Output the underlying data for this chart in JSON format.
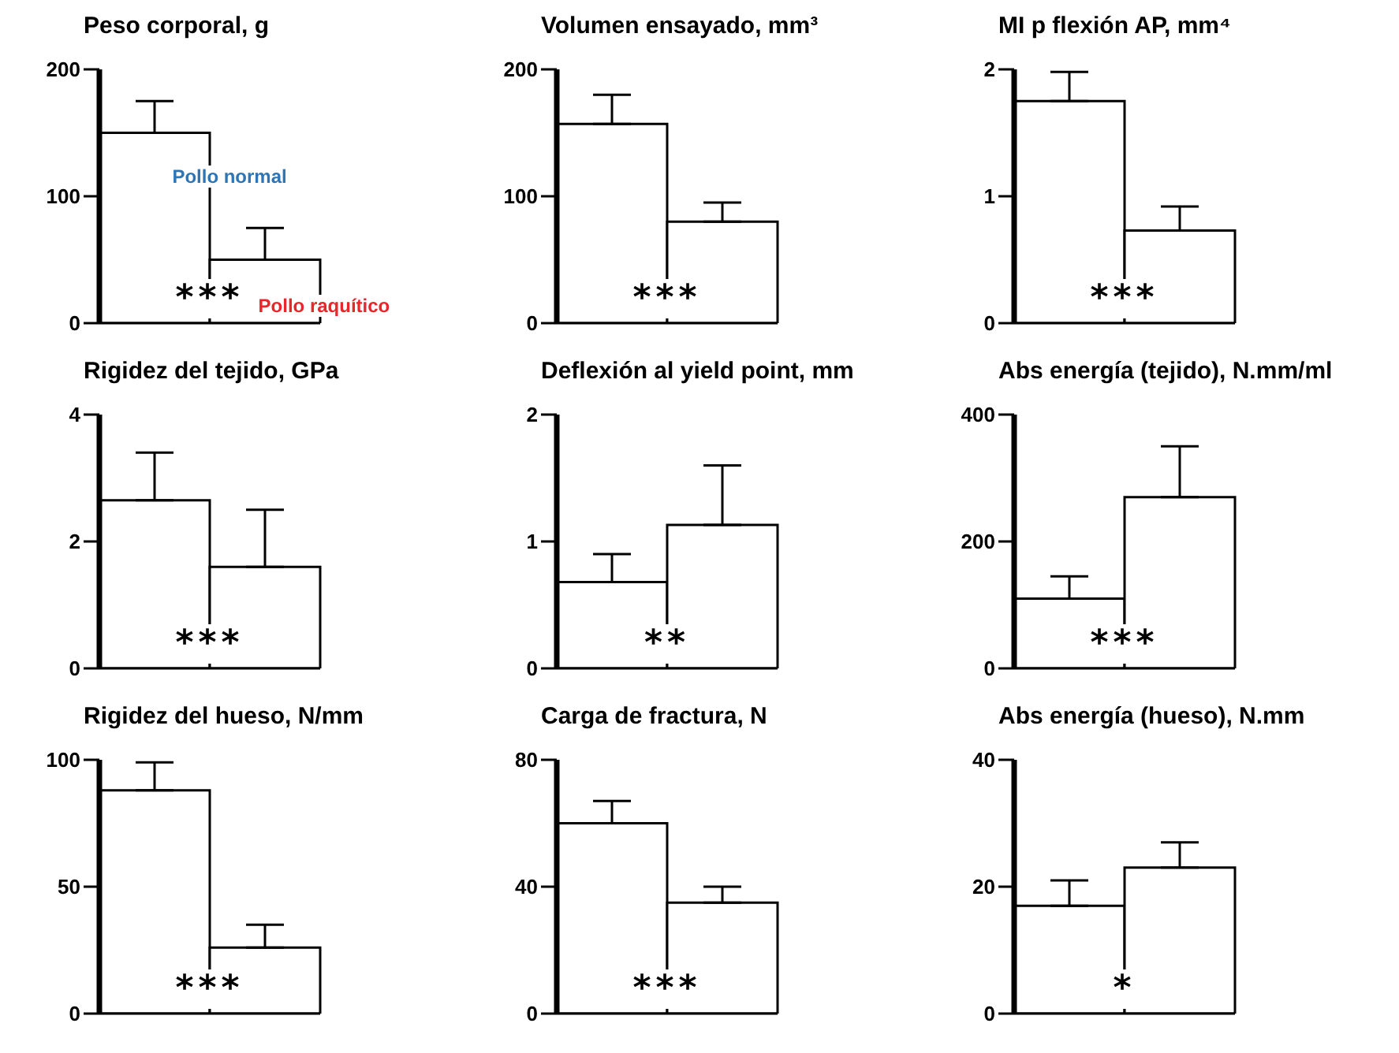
{
  "chart_data": [
    {
      "type": "bar",
      "title": "Peso corporal, g",
      "categories": [
        null,
        null
      ],
      "values": [
        150,
        50
      ],
      "errors": [
        [
          150,
          175
        ],
        [
          50,
          75
        ]
      ],
      "colors": [
        "#ffffff",
        "#ffffff"
      ],
      "ylim": [
        0,
        200
      ],
      "yticks": [
        0,
        100,
        200
      ],
      "tick_labels": "y",
      "annotations": [
        "***",
        "Pollo normal",
        "Pollo raquítico"
      ]
    },
    {
      "type": "bar",
      "title": "Volumen ensayado, mm³",
      "categories": [
        null,
        null
      ],
      "values": [
        157,
        80
      ],
      "errors": [
        [
          157,
          180
        ],
        [
          80,
          95
        ]
      ],
      "colors": [
        "#ffffff",
        "#ffffff"
      ],
      "ylim": [
        0,
        200
      ],
      "yticks": [
        0,
        100,
        200
      ],
      "tick_labels": "y",
      "annotations": [
        "***"
      ]
    },
    {
      "type": "bar",
      "title": "MI p flexión AP, mm⁴",
      "categories": [
        null,
        null
      ],
      "values": [
        1.75,
        0.73
      ],
      "errors": [
        [
          1.75,
          1.98
        ],
        [
          0.73,
          0.92
        ]
      ],
      "colors": [
        "#ffffff",
        "#ffffff"
      ],
      "ylim": [
        0,
        2
      ],
      "yticks": [
        0,
        1,
        2
      ],
      "tick_labels": "y",
      "annotations": [
        "***"
      ]
    },
    {
      "type": "bar",
      "title": "Rigidez del tejido, GPa",
      "categories": [
        null,
        null
      ],
      "values": [
        2.65,
        1.6
      ],
      "errors": [
        [
          2.65,
          3.4
        ],
        [
          1.6,
          2.5
        ]
      ],
      "colors": [
        "#ffffff",
        "#ffffff"
      ],
      "ylim": [
        0,
        4
      ],
      "yticks": [
        0,
        2,
        4
      ],
      "tick_labels": "y",
      "annotations": [
        "***"
      ]
    },
    {
      "type": "bar",
      "title": "Deflexión al yield point, mm",
      "categories": [
        null,
        null
      ],
      "values": [
        0.68,
        1.13
      ],
      "errors": [
        [
          0.68,
          0.9
        ],
        [
          1.13,
          1.6
        ]
      ],
      "colors": [
        "#ffffff",
        "#ffffff"
      ],
      "ylim": [
        0,
        2
      ],
      "yticks": [
        0,
        1,
        2
      ],
      "tick_labels": "y",
      "annotations": [
        "**"
      ]
    },
    {
      "type": "bar",
      "title": "Abs energía (tejido), N.mm/ml",
      "categories": [
        null,
        null
      ],
      "values": [
        110,
        270
      ],
      "errors": [
        [
          110,
          145
        ],
        [
          270,
          350
        ]
      ],
      "colors": [
        "#ffffff",
        "#ffffff"
      ],
      "ylim": [
        0,
        400
      ],
      "yticks": [
        0,
        200,
        400
      ],
      "tick_labels": "y",
      "annotations": [
        "***"
      ]
    },
    {
      "type": "bar",
      "title": "Rigidez del hueso, N/mm",
      "categories": [
        null,
        null
      ],
      "values": [
        88,
        26
      ],
      "errors": [
        [
          88,
          99
        ],
        [
          26,
          35
        ]
      ],
      "colors": [
        "#ffffff",
        "#ffffff"
      ],
      "ylim": [
        0,
        100
      ],
      "yticks": [
        0,
        50,
        100
      ],
      "tick_labels": "y",
      "annotations": [
        "***"
      ]
    },
    {
      "type": "bar",
      "title": "Carga de fractura, N",
      "categories": [
        null,
        null
      ],
      "values": [
        60,
        35
      ],
      "errors": [
        [
          60,
          67
        ],
        [
          35,
          40
        ]
      ],
      "colors": [
        "#ffffff",
        "#ffffff"
      ],
      "ylim": [
        0,
        80
      ],
      "yticks": [
        0,
        40,
        80
      ],
      "tick_labels": "y",
      "annotations": [
        "***"
      ]
    },
    {
      "type": "bar",
      "title": "Abs energía (hueso), N.mm",
      "categories": [
        null,
        null
      ],
      "values": [
        17,
        23
      ],
      "errors": [
        [
          17,
          21
        ],
        [
          23,
          27
        ]
      ],
      "colors": [
        "#ffffff",
        "#ffffff"
      ],
      "ylim": [
        0,
        40
      ],
      "yticks": [
        0,
        20,
        40
      ],
      "tick_labels": "y",
      "annotations": [
        "*"
      ]
    }
  ]
}
